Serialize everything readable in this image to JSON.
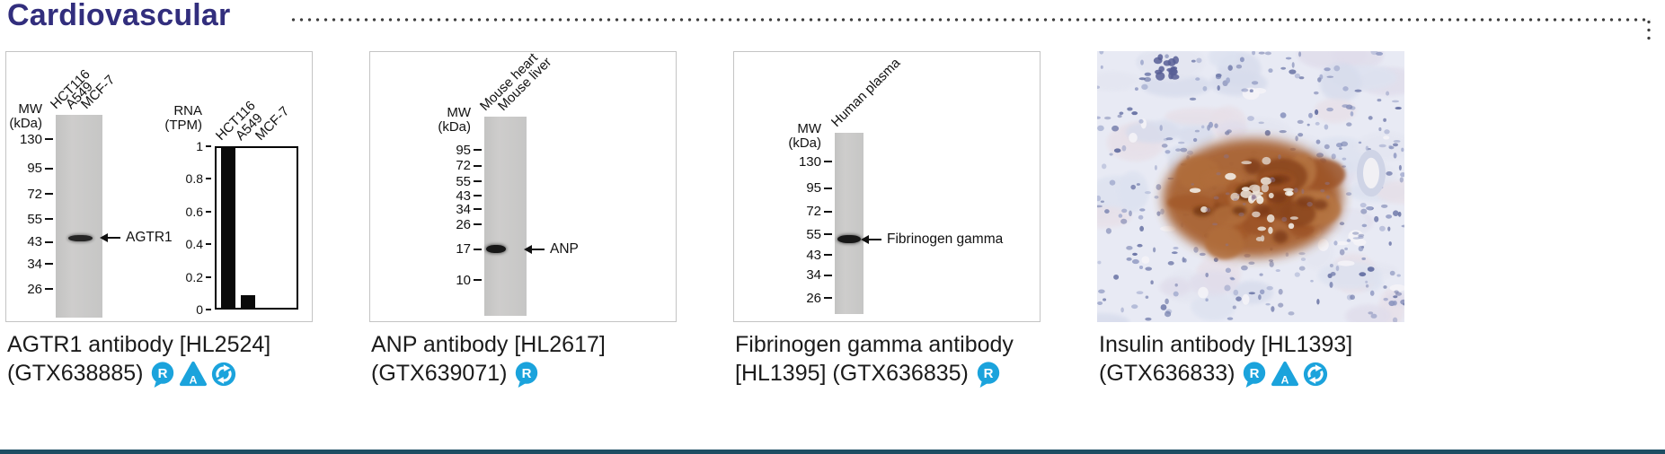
{
  "header": {
    "title": "Cardiovascular"
  },
  "theme": {
    "accent_blue": "#1ba3dc",
    "title_color": "#322e7d",
    "bottom_bar_color": "#1d4e63"
  },
  "products": [
    {
      "caption_line1": "AGTR1 antibody [HL2524]",
      "caption_line2": "(GTX638885)",
      "icons": [
        "reference-icon",
        "advanced-icon",
        "orthogonal-icon"
      ],
      "blot": {
        "mw_label": [
          "MW",
          "(kDa)"
        ],
        "lane_labels": [
          "HCT116",
          "A549",
          "MCF-7"
        ],
        "markers": [
          130,
          95,
          72,
          55,
          43,
          34,
          26
        ],
        "bands": [
          {
            "kda": 45,
            "label": "AGTR1"
          }
        ]
      },
      "chart": {
        "type": "bar",
        "ylabel": [
          "RNA",
          "(TPM)"
        ],
        "categories": [
          "HCT116",
          "A549",
          "MCF-7"
        ],
        "values": [
          1.0,
          0.09,
          0
        ],
        "yticks": [
          1,
          0.8,
          0.6,
          0.4,
          0.2,
          0
        ],
        "ylim": [
          0,
          1
        ]
      }
    },
    {
      "caption_line1": "ANP antibody [HL2617]",
      "caption_line2": "(GTX639071)",
      "icons": [
        "reference-icon"
      ],
      "blot": {
        "mw_label": [
          "MW",
          "(kDa)"
        ],
        "lane_labels": [
          "Mouse heart",
          "Mouse liver"
        ],
        "markers": [
          95,
          72,
          55,
          43,
          34,
          26,
          17,
          10
        ],
        "bands": [
          {
            "kda": 17,
            "label": "ANP"
          }
        ]
      }
    },
    {
      "caption_line1": "Fibrinogen gamma antibody",
      "caption_line2": "[HL1395] (GTX636835)",
      "icons": [
        "reference-icon"
      ],
      "blot": {
        "mw_label": [
          "MW",
          "(kDa)"
        ],
        "lane_labels": [
          "Human plasma"
        ],
        "markers": [
          130,
          95,
          72,
          55,
          43,
          34,
          26
        ],
        "bands": [
          {
            "kda": 52,
            "label": "Fibrinogen gamma"
          }
        ]
      }
    },
    {
      "caption_line1": "Insulin antibody [HL1393]",
      "caption_line2": "(GTX636833)",
      "icons": [
        "reference-icon",
        "advanced-icon",
        "orthogonal-icon"
      ],
      "image": {
        "type": "ihc-staining"
      }
    }
  ],
  "chart_data": {
    "type": "bar",
    "title": "RNA (TPM)",
    "ylabel": "RNA (TPM)",
    "categories": [
      "HCT116",
      "A549",
      "MCF-7"
    ],
    "values": [
      1.0,
      0.09,
      0
    ],
    "yticks": [
      0,
      0.2,
      0.4,
      0.6,
      0.8,
      1
    ],
    "ylim": [
      0,
      1
    ],
    "legend": false
  }
}
